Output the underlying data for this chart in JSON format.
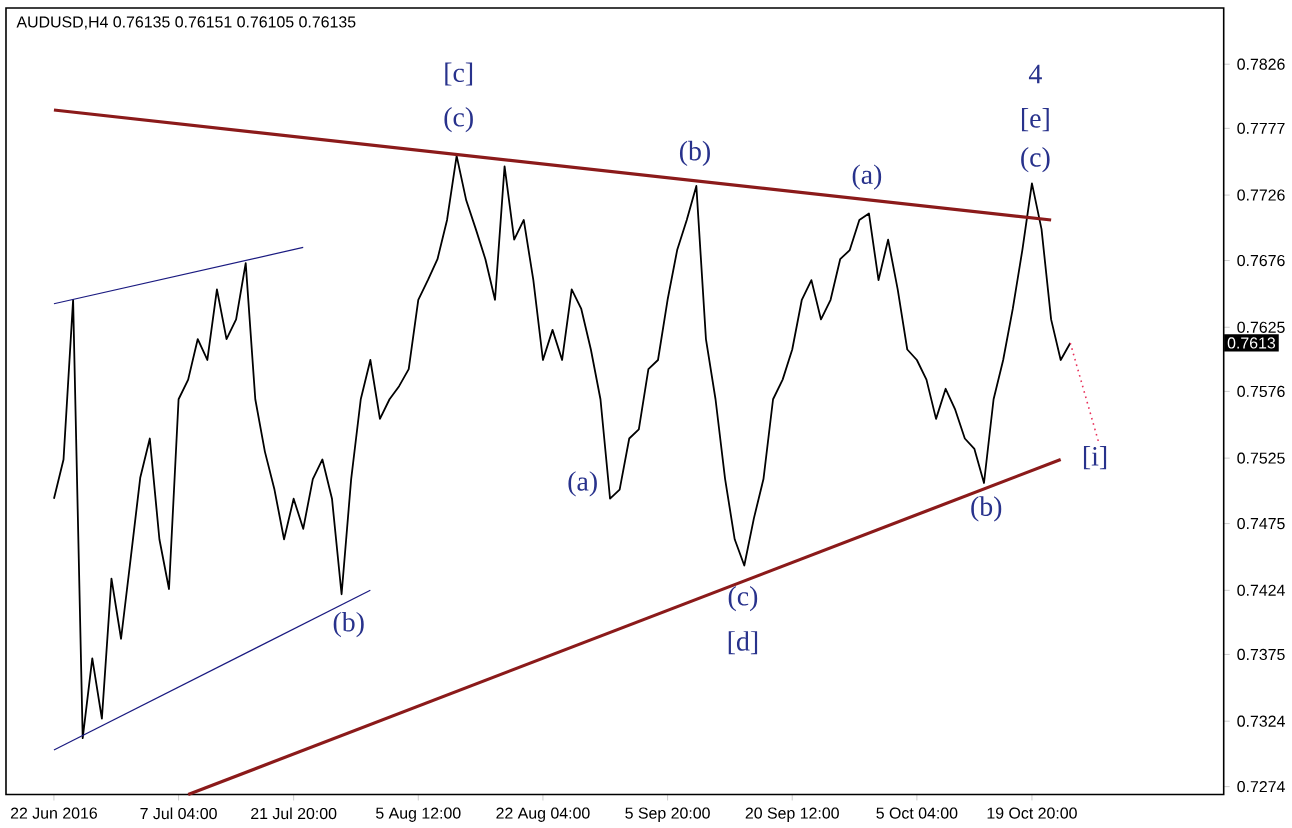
{
  "chart_data": {
    "type": "line",
    "categories": [
      "22 Jun 2016",
      null,
      null,
      null,
      null,
      null,
      null,
      null,
      null,
      null,
      null,
      null,
      null,
      "7 Jul 04:00",
      null,
      null,
      null,
      null,
      null,
      null,
      null,
      null,
      null,
      null,
      null,
      "21 Jul 20:00",
      null,
      null,
      null,
      null,
      null,
      null,
      null,
      null,
      null,
      null,
      null,
      null,
      "5 Aug 12:00",
      null,
      null,
      null,
      null,
      null,
      null,
      null,
      null,
      null,
      null,
      null,
      null,
      "22 Aug 04:00",
      null,
      null,
      null,
      null,
      null,
      null,
      null,
      null,
      null,
      null,
      null,
      null,
      "5 Sep 20:00",
      null,
      null,
      null,
      null,
      null,
      null,
      null,
      null,
      null,
      null,
      null,
      null,
      "20 Sep 12:00",
      null,
      null,
      null,
      null,
      null,
      null,
      null,
      null,
      null,
      null,
      null,
      null,
      "5 Oct 04:00",
      null,
      null,
      null,
      null,
      null,
      null,
      null,
      null,
      null,
      null,
      null,
      "19 Oct 20:00",
      null,
      null,
      null,
      null,
      null,
      null,
      null,
      null,
      null,
      null,
      null,
      null,
      null,
      null,
      null,
      null,
      null,
      null,
      null,
      null
    ],
    "series": [
      {
        "color": "#000000",
        "values": [
          0.7494,
          0.7524,
          0.7646,
          0.7311,
          0.7372,
          0.7326,
          0.7433,
          0.7387,
          0.7448,
          0.751,
          0.754,
          0.7463,
          0.7425,
          0.757,
          0.7585,
          0.7616,
          0.76,
          0.7654,
          0.7616,
          0.7631,
          0.7674,
          0.757,
          0.753,
          0.7501,
          0.7463,
          0.7494,
          0.7471,
          0.7509,
          0.7524,
          0.7494,
          0.7421,
          0.7509,
          0.757,
          0.76,
          0.7555,
          0.757,
          0.758,
          0.7593,
          0.7646,
          0.7661,
          0.7677,
          0.7707,
          0.7756,
          0.7722,
          0.77,
          0.7677,
          0.7646,
          0.7748,
          0.7692,
          0.7707,
          0.7661,
          0.76,
          0.7623,
          0.76,
          0.7654,
          0.7639,
          0.7608,
          0.757,
          0.7494,
          0.7501,
          0.754,
          0.7547,
          0.7593,
          0.76,
          0.7646,
          0.7684,
          0.7707,
          0.7733,
          0.7616,
          0.757,
          0.7509,
          0.7463,
          0.7443,
          0.7479,
          0.7509,
          0.757,
          0.7585,
          0.7608,
          0.7646,
          0.7661,
          0.7631,
          0.7646,
          0.7677,
          0.7684,
          0.7707,
          0.7712,
          0.7661,
          0.7692,
          0.7654,
          0.7608,
          0.76,
          0.7585,
          0.7555,
          0.7578,
          0.7562,
          0.754,
          0.7532,
          0.7506,
          0.757,
          0.76,
          0.7639,
          0.7684,
          0.7735,
          0.77,
          0.7631,
          0.76,
          0.7613,
          null,
          null,
          null,
          null,
          null,
          null,
          null,
          null,
          null,
          null,
          null,
          null,
          null,
          null,
          null,
          null
        ]
      },
      {
        "color": "#8b1a1a",
        "values": [
          0.7791,
          null,
          null,
          null,
          null,
          null,
          null,
          null,
          null,
          null,
          null,
          null,
          null,
          null,
          null,
          null,
          null,
          null,
          null,
          null,
          null,
          null,
          null,
          null,
          null,
          null,
          null,
          null,
          null,
          null,
          null,
          null,
          null,
          null,
          null,
          null,
          null,
          null,
          null,
          null,
          null,
          null,
          null,
          null,
          null,
          null,
          null,
          null,
          null,
          null,
          null,
          null,
          null,
          null,
          null,
          null,
          null,
          null,
          null,
          null,
          null,
          null,
          null,
          null,
          null,
          null,
          null,
          null,
          null,
          null,
          null,
          null,
          null,
          null,
          null,
          null,
          null,
          null,
          null,
          null,
          null,
          null,
          null,
          null,
          null,
          null,
          null,
          null,
          null,
          null,
          null,
          null,
          null,
          null,
          null,
          null,
          null,
          null,
          null,
          null,
          null,
          null,
          null,
          null,
          0.7707,
          null,
          null,
          null,
          null,
          null,
          null,
          null,
          null,
          null,
          null,
          null,
          null,
          null,
          null,
          null,
          null,
          null,
          null
        ]
      },
      {
        "color": "#8b1a1a",
        "values": [
          null,
          null,
          null,
          null,
          null,
          null,
          null,
          null,
          null,
          null,
          null,
          null,
          null,
          null,
          0.7268,
          null,
          null,
          null,
          null,
          null,
          null,
          null,
          null,
          null,
          null,
          null,
          null,
          null,
          null,
          null,
          null,
          null,
          null,
          null,
          null,
          null,
          null,
          null,
          null,
          null,
          null,
          null,
          null,
          null,
          null,
          null,
          null,
          null,
          null,
          null,
          null,
          null,
          null,
          null,
          null,
          null,
          null,
          null,
          null,
          null,
          null,
          null,
          null,
          null,
          null,
          null,
          null,
          null,
          null,
          null,
          null,
          null,
          null,
          null,
          null,
          null,
          null,
          null,
          null,
          null,
          null,
          null,
          null,
          null,
          null,
          null,
          null,
          null,
          null,
          null,
          null,
          null,
          null,
          null,
          null,
          null,
          null,
          null,
          null,
          null,
          null,
          null,
          null,
          null,
          null,
          0.7524,
          null,
          null,
          null,
          null,
          null,
          null,
          null,
          null,
          null,
          null,
          null,
          null,
          null,
          null,
          null,
          null,
          null
        ]
      },
      {
        "color": "#1a1a80",
        "values": [
          0.7643,
          null,
          null,
          null,
          null,
          null,
          null,
          null,
          null,
          null,
          null,
          null,
          null,
          null,
          null,
          null,
          null,
          null,
          null,
          null,
          null,
          null,
          null,
          null,
          null,
          null,
          0.7686,
          null,
          null,
          null,
          null,
          null,
          null,
          null,
          null,
          null,
          null,
          null,
          null,
          null,
          null,
          null,
          null,
          null,
          null,
          null,
          null,
          null,
          null,
          null,
          null,
          null,
          null,
          null,
          null,
          null,
          null,
          null,
          null,
          null,
          null,
          null,
          null,
          null,
          null,
          null,
          null,
          null,
          null,
          null,
          null,
          null,
          null,
          null,
          null,
          null,
          null,
          null,
          null,
          null,
          null,
          null,
          null,
          null,
          null,
          null,
          null,
          null,
          null,
          null,
          null,
          null,
          null,
          null,
          null,
          null,
          null,
          null,
          null,
          null,
          null,
          null,
          null,
          null,
          null,
          null,
          null,
          null,
          null,
          null,
          null,
          null,
          null,
          null,
          null,
          null,
          null,
          null,
          null,
          null,
          null,
          null,
          null
        ]
      },
      {
        "color": "#1a1a80",
        "values": [
          0.7302,
          null,
          null,
          null,
          null,
          null,
          null,
          null,
          null,
          null,
          null,
          null,
          null,
          null,
          null,
          null,
          null,
          null,
          null,
          null,
          null,
          null,
          null,
          null,
          null,
          null,
          null,
          null,
          null,
          null,
          null,
          null,
          null,
          0.7424,
          null,
          null,
          null,
          null,
          null,
          null,
          null,
          null,
          null,
          null,
          null,
          null,
          null,
          null,
          null,
          null,
          null,
          null,
          null,
          null,
          null,
          null,
          null,
          null,
          null,
          null,
          null,
          null,
          null,
          null,
          null,
          null,
          null,
          null,
          null,
          null,
          null,
          null,
          null,
          null,
          null,
          null,
          null,
          null,
          null,
          null,
          null,
          null,
          null,
          null,
          null,
          null,
          null,
          null,
          null,
          null,
          null,
          null,
          null,
          null,
          null,
          null,
          null,
          null,
          null,
          null,
          null,
          null,
          null,
          null,
          null,
          null,
          null,
          null,
          null,
          null,
          null,
          null,
          null,
          null,
          null,
          null,
          null,
          null,
          null,
          null,
          null,
          null,
          null
        ]
      },
      {
        "color": "#e8305a",
        "line_style": "dotted",
        "values": [
          null,
          null,
          null,
          null,
          null,
          null,
          null,
          null,
          null,
          null,
          null,
          null,
          null,
          null,
          null,
          null,
          null,
          null,
          null,
          null,
          null,
          null,
          null,
          null,
          null,
          null,
          null,
          null,
          null,
          null,
          null,
          null,
          null,
          null,
          null,
          null,
          null,
          null,
          null,
          null,
          null,
          null,
          null,
          null,
          null,
          null,
          null,
          null,
          null,
          null,
          null,
          null,
          null,
          null,
          null,
          null,
          null,
          null,
          null,
          null,
          null,
          null,
          null,
          null,
          null,
          null,
          null,
          null,
          null,
          null,
          null,
          null,
          null,
          null,
          null,
          null,
          null,
          null,
          null,
          null,
          null,
          null,
          null,
          null,
          null,
          null,
          null,
          null,
          null,
          null,
          null,
          null,
          null,
          null,
          null,
          null,
          null,
          null,
          null,
          null,
          null,
          null,
          null,
          null,
          null,
          null,
          0.7613,
          null,
          null,
          0.7536,
          null,
          null,
          null,
          null,
          null,
          null,
          null,
          null,
          null,
          null,
          null,
          null,
          null
        ]
      }
    ],
    "ylim": [
      0.7268,
      0.7869
    ],
    "yticks": [
      0.7826,
      0.7777,
      0.7726,
      0.7676,
      0.7625,
      0.7576,
      0.7525,
      0.7475,
      0.7424,
      0.7375,
      0.7324,
      0.7274
    ],
    "annotations": [
      "AUDUSD,H4  0.76135 0.76151 0.76105 0.76135",
      "0.7613",
      "[c]",
      "(c)",
      "(b)",
      "(a)",
      "4",
      "[e]",
      "(c)",
      "(b)",
      "(a)",
      "(c)",
      "[d]",
      "(b)",
      {
        "text": "[i]",
        "y": 0.7536
      }
    ],
    "grid": false,
    "marker": "none"
  }
}
